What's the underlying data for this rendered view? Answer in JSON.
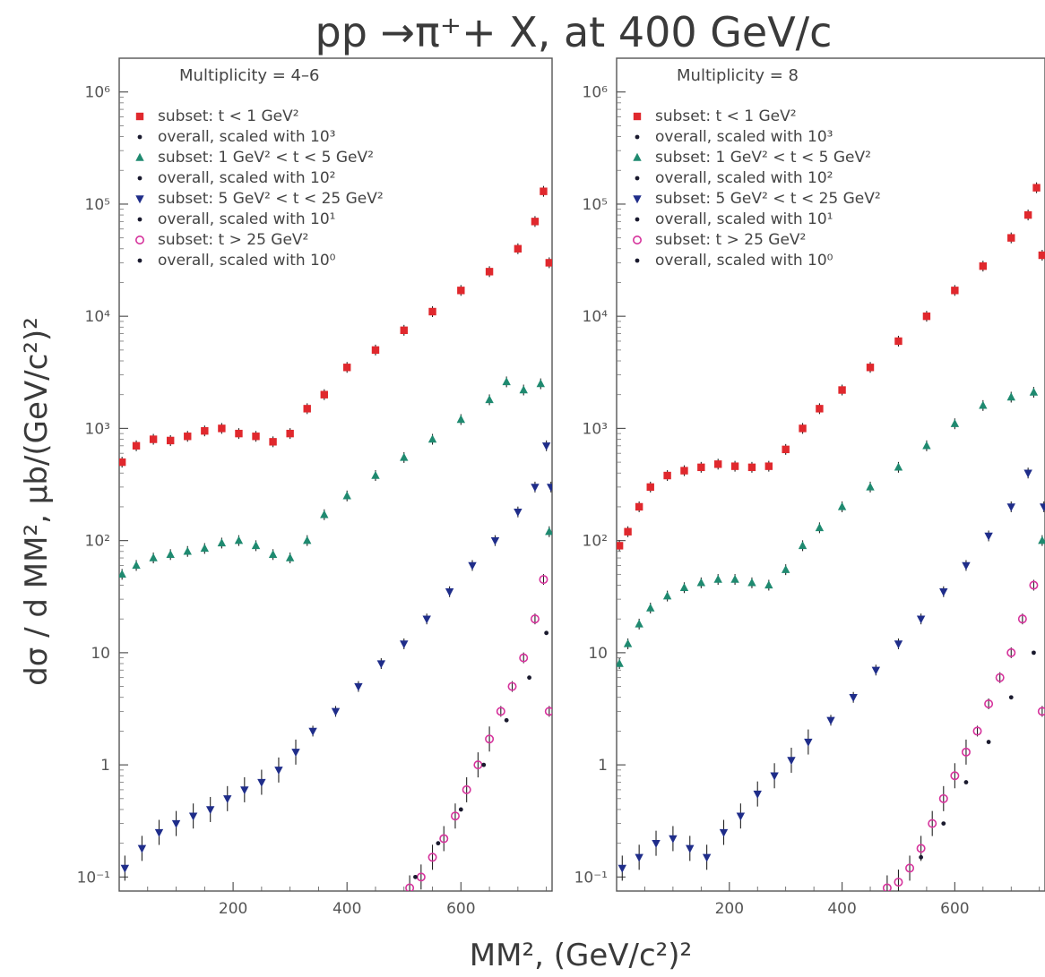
{
  "chart_data": {
    "type": "scatter",
    "title": "pp →π⁺+ X, at 400 GeV/c",
    "xlabel": "MM², (GeV/c²)²",
    "ylabel": "dσ / d MM², μb/(GeV/c²)²",
    "yscale": "log",
    "ylim": [
      0.075,
      2000000
    ],
    "ytick_labels": [
      "10⁶",
      "10⁵",
      "10⁴",
      "10³",
      "10²",
      "10",
      "1",
      "10⁻¹"
    ],
    "panels": [
      {
        "panel_title": "Multiplicity = 4–6",
        "xlim": [
          0,
          760
        ],
        "xticks": [
          200,
          400,
          600
        ],
        "legend": [
          "subset: t < 1 GeV²",
          "overall, scaled with 10³",
          "subset: 1 GeV² < t < 5 GeV²",
          "overall, scaled with 10²",
          "subset: 5 GeV² < t < 25 GeV²",
          "overall, scaled with 10¹",
          "subset: t > 25 GeV²",
          "overall, scaled with 10⁰"
        ],
        "series": [
          {
            "name": "subset: t < 1 GeV²",
            "color": "#e0282d",
            "marker": "square",
            "x": [
              5,
              30,
              60,
              90,
              120,
              150,
              180,
              210,
              240,
              270,
              300,
              330,
              360,
              400,
              450,
              500,
              550,
              600,
              650,
              700,
              730,
              745,
              755
            ],
            "y": [
              500,
              700,
              800,
              780,
              850,
              950,
              1000,
              900,
              850,
              760,
              900,
              1500,
              2000,
              3500,
              5000,
              7500,
              11000,
              17000,
              25000,
              40000,
              70000,
              130000,
              30000
            ]
          },
          {
            "name": "subset: 1 GeV² < t < 5 GeV²",
            "color": "#1f8a70",
            "marker": "triangle-up",
            "x": [
              5,
              30,
              60,
              90,
              120,
              150,
              180,
              210,
              240,
              270,
              300,
              330,
              360,
              400,
              450,
              500,
              550,
              600,
              650,
              680,
              710,
              740,
              755
            ],
            "y": [
              50,
              60,
              70,
              75,
              80,
              85,
              95,
              100,
              90,
              75,
              70,
              100,
              170,
              250,
              380,
              550,
              800,
              1200,
              1800,
              2600,
              2200,
              2500,
              120
            ]
          },
          {
            "name": "subset: 5 GeV² < t < 25 GeV²",
            "color": "#1f2d8a",
            "marker": "triangle-down",
            "x": [
              10,
              40,
              70,
              100,
              130,
              160,
              190,
              220,
              250,
              280,
              310,
              340,
              380,
              420,
              460,
              500,
              540,
              580,
              620,
              660,
              700,
              730,
              750,
              758
            ],
            "y": [
              0.12,
              0.18,
              0.25,
              0.3,
              0.35,
              0.4,
              0.5,
              0.6,
              0.7,
              0.9,
              1.3,
              2,
              3,
              5,
              8,
              12,
              20,
              35,
              60,
              100,
              180,
              300,
              700,
              300
            ]
          },
          {
            "name": "subset: t > 25 GeV²",
            "color": "#d6339c",
            "marker": "circle-open",
            "x": [
              510,
              530,
              550,
              570,
              590,
              610,
              630,
              650,
              670,
              690,
              710,
              730,
              745,
              755
            ],
            "y": [
              0.08,
              0.1,
              0.15,
              0.22,
              0.35,
              0.6,
              1.0,
              1.7,
              3,
              5,
              9,
              20,
              45,
              3
            ]
          },
          {
            "name": "overall",
            "color": "#1a1a2e",
            "marker": "dot",
            "x": [
              480,
              520,
              560,
              600,
              640,
              680,
              720,
              750
            ],
            "y": [
              0.07,
              0.1,
              0.2,
              0.4,
              1.0,
              2.5,
              6,
              15
            ]
          }
        ]
      },
      {
        "panel_title": "Multiplicity = 8",
        "xlim": [
          0,
          760
        ],
        "xticks": [
          200,
          400,
          600
        ],
        "legend": [
          "subset: t < 1 GeV²",
          "overall, scaled with 10³",
          "subset: 1 GeV² < t < 5 GeV²",
          "overall, scaled with 10²",
          "subset: 5 GeV² < t < 25 GeV²",
          "overall, scaled with 10¹",
          "subset: t > 25 GeV²",
          "overall, scaled with 10⁰"
        ],
        "series": [
          {
            "name": "subset: t < 1 GeV²",
            "color": "#e0282d",
            "marker": "square",
            "x": [
              5,
              20,
              40,
              60,
              90,
              120,
              150,
              180,
              210,
              240,
              270,
              300,
              330,
              360,
              400,
              450,
              500,
              550,
              600,
              650,
              700,
              730,
              745,
              755
            ],
            "y": [
              90,
              120,
              200,
              300,
              380,
              420,
              450,
              480,
              460,
              450,
              460,
              650,
              1000,
              1500,
              2200,
              3500,
              6000,
              10000,
              17000,
              28000,
              50000,
              80000,
              140000,
              35000
            ]
          },
          {
            "name": "subset: 1 GeV² < t < 5 GeV²",
            "color": "#1f8a70",
            "marker": "triangle-up",
            "x": [
              5,
              20,
              40,
              60,
              90,
              120,
              150,
              180,
              210,
              240,
              270,
              300,
              330,
              360,
              400,
              450,
              500,
              550,
              600,
              650,
              700,
              740,
              755
            ],
            "y": [
              8,
              12,
              18,
              25,
              32,
              38,
              42,
              45,
              45,
              42,
              40,
              55,
              90,
              130,
              200,
              300,
              450,
              700,
              1100,
              1600,
              1900,
              2100,
              100
            ]
          },
          {
            "name": "subset: 5 GeV² < t < 25 GeV²",
            "color": "#1f2d8a",
            "marker": "triangle-down",
            "x": [
              10,
              40,
              70,
              100,
              130,
              160,
              190,
              220,
              250,
              280,
              310,
              340,
              380,
              420,
              460,
              500,
              540,
              580,
              620,
              660,
              700,
              730,
              758
            ],
            "y": [
              0.12,
              0.15,
              0.2,
              0.22,
              0.18,
              0.15,
              0.25,
              0.35,
              0.55,
              0.8,
              1.1,
              1.6,
              2.5,
              4,
              7,
              12,
              20,
              35,
              60,
              110,
              200,
              400,
              200
            ]
          },
          {
            "name": "subset: t > 25 GeV²",
            "color": "#d6339c",
            "marker": "circle-open",
            "x": [
              480,
              500,
              520,
              540,
              560,
              580,
              600,
              620,
              640,
              660,
              680,
              700,
              720,
              740,
              755
            ],
            "y": [
              0.08,
              0.09,
              0.12,
              0.18,
              0.3,
              0.5,
              0.8,
              1.3,
              2,
              3.5,
              6,
              10,
              20,
              40,
              3
            ]
          },
          {
            "name": "overall",
            "color": "#1a1a2e",
            "marker": "dot",
            "x": [
              500,
              540,
              580,
              620,
              660,
              700,
              740
            ],
            "y": [
              0.07,
              0.15,
              0.3,
              0.7,
              1.6,
              4,
              10
            ]
          }
        ]
      }
    ]
  }
}
